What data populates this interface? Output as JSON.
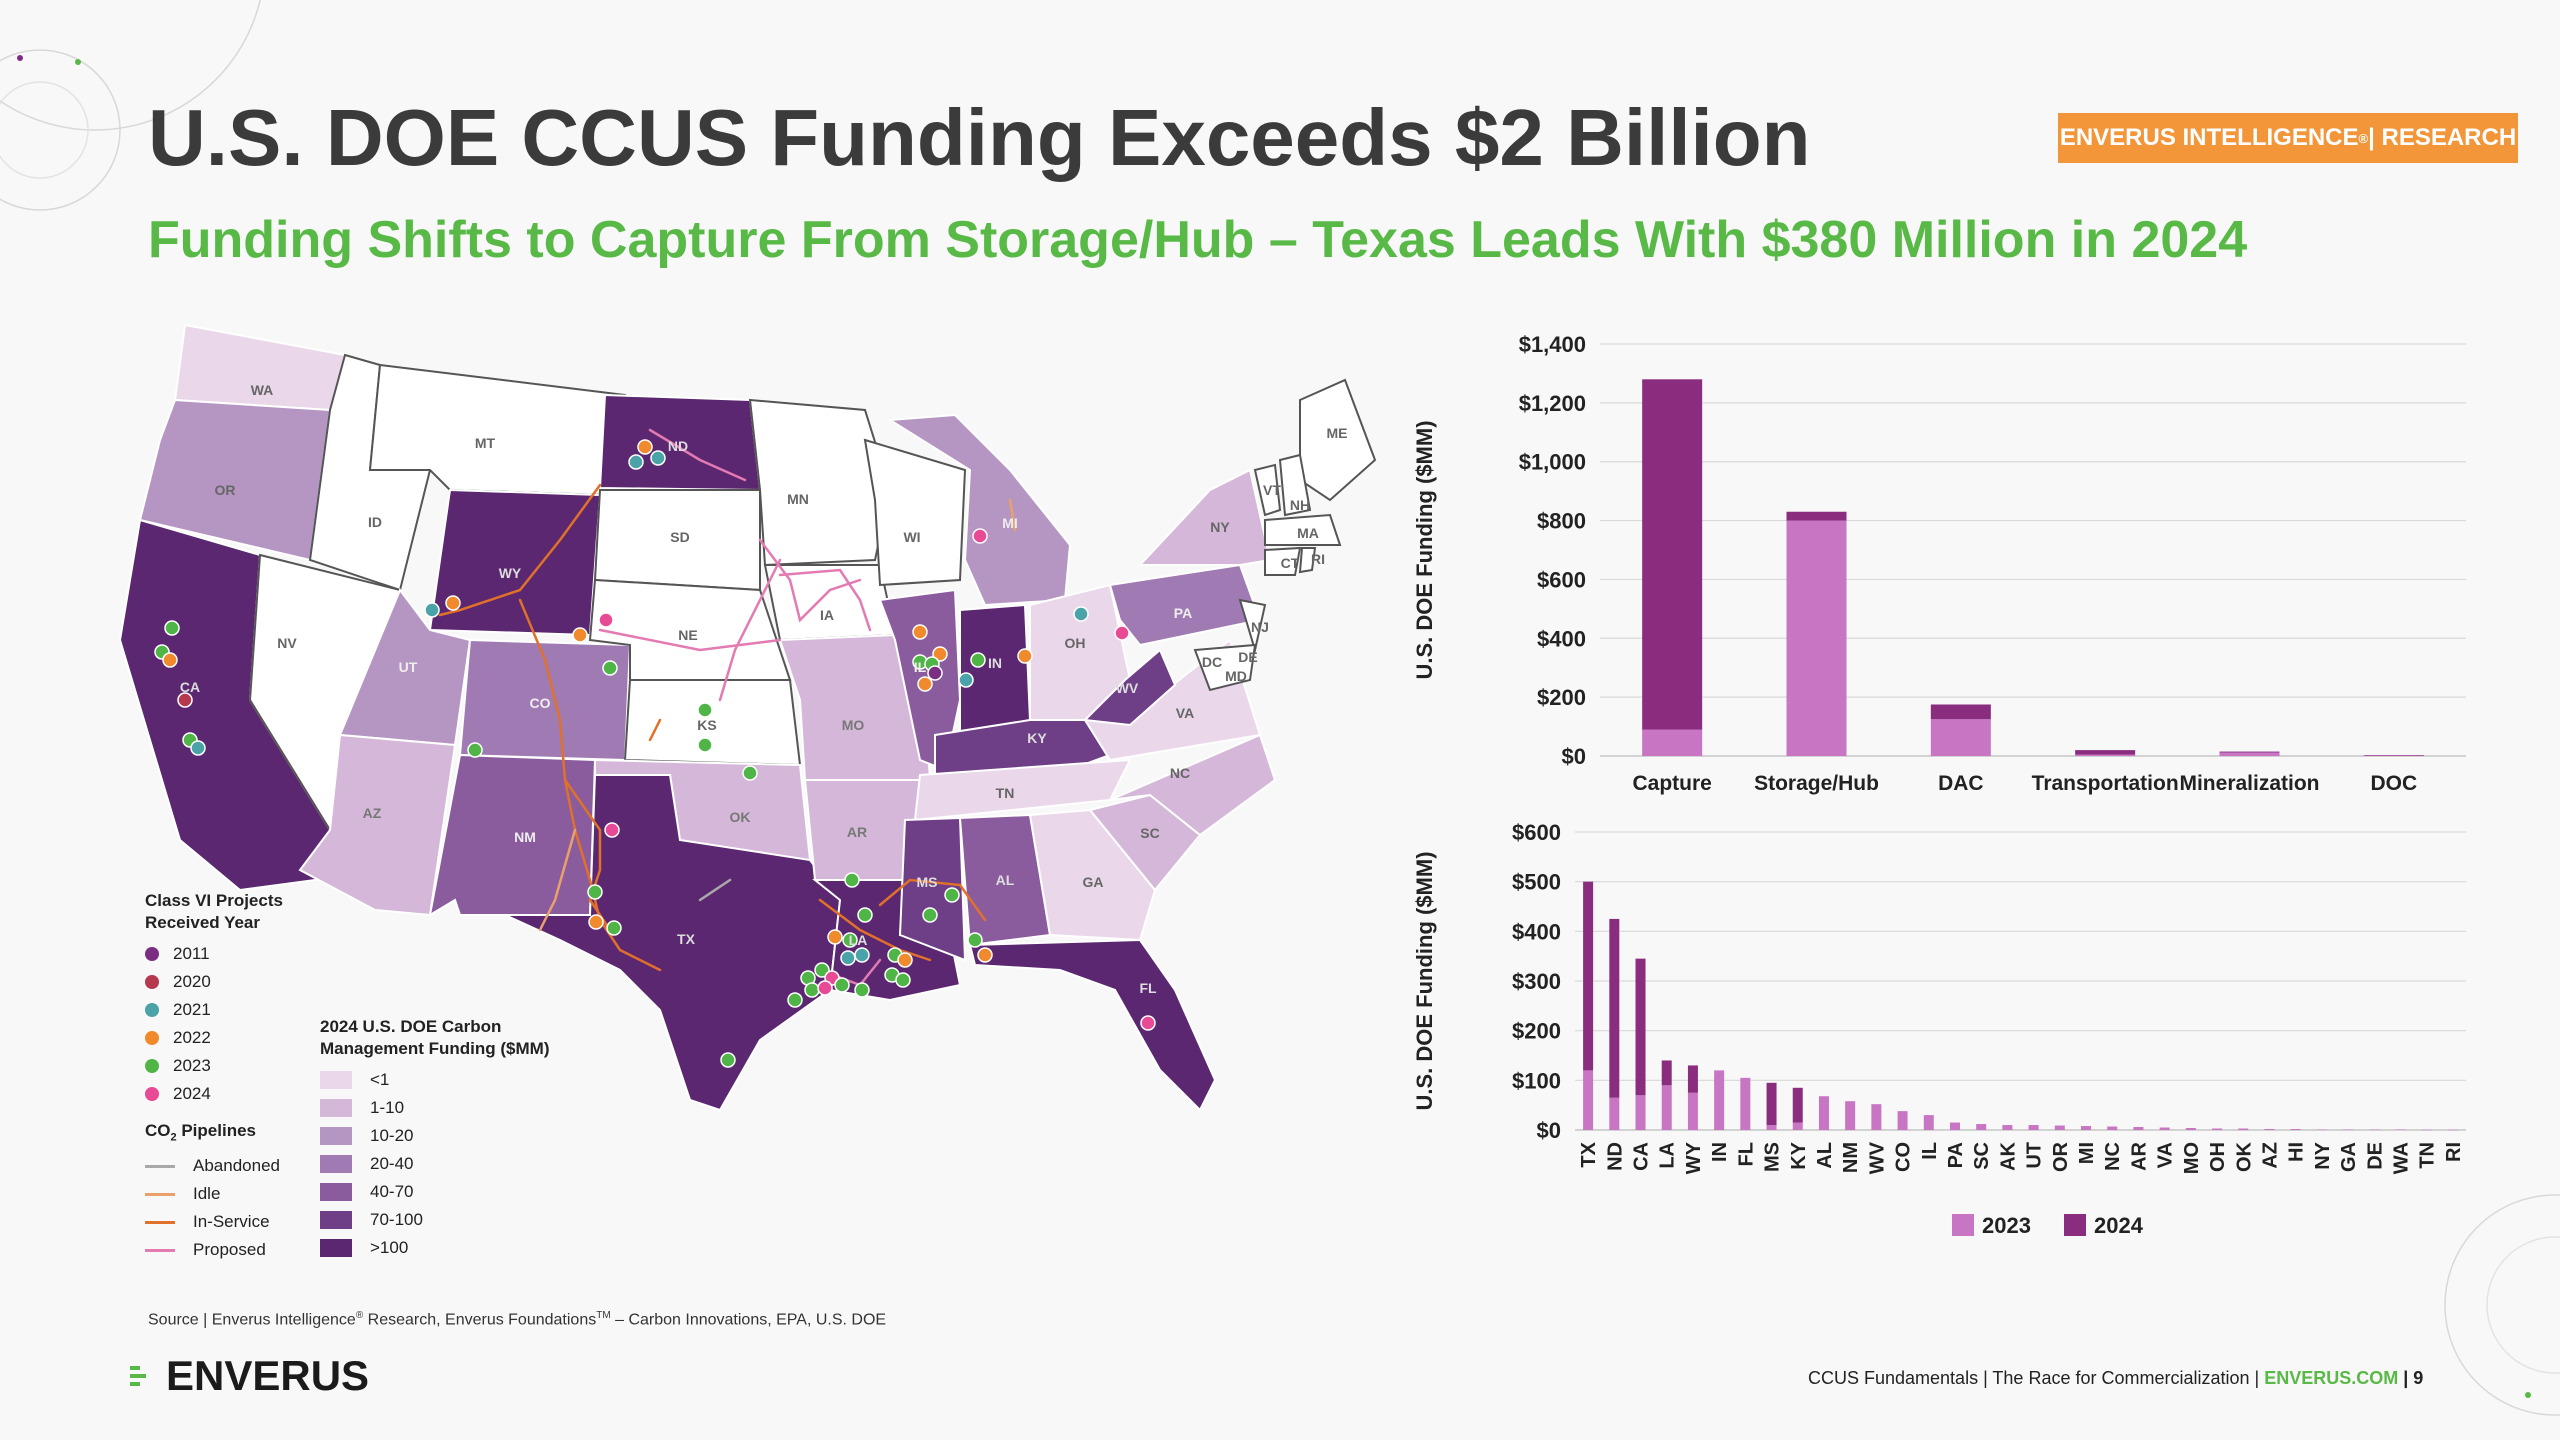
{
  "header": {
    "title": "U.S. DOE CCUS Funding Exceeds $2 Billion",
    "subtitle": "Funding Shifts to Capture From Storage/Hub – Texas Leads With $380 Million in 2024",
    "badge_left": "ENVERUS INTELLIGENCE",
    "badge_mark": "®",
    "badge_right": " | RESEARCH"
  },
  "map": {
    "state_labels": [
      "WA",
      "OR",
      "CA",
      "ID",
      "NV",
      "MT",
      "WY",
      "UT",
      "AZ",
      "CO",
      "NM",
      "ND",
      "SD",
      "NE",
      "KS",
      "OK",
      "TX",
      "MN",
      "IA",
      "MO",
      "AR",
      "LA",
      "WI",
      "IL",
      "MI",
      "IN",
      "OH",
      "KY",
      "TN",
      "MS",
      "AL",
      "GA",
      "FL",
      "SC",
      "NC",
      "VA",
      "WV",
      "PA",
      "NY",
      "ME",
      "VT",
      "NH",
      "MA",
      "CT",
      "RI",
      "NJ",
      "DE",
      "MD",
      "DC"
    ],
    "projects_legend": {
      "title": "Class VI Projects Received Year",
      "items": [
        {
          "label": "2011",
          "color": "#7b2d83"
        },
        {
          "label": "2020",
          "color": "#b5384e"
        },
        {
          "label": "2021",
          "color": "#4aa3a8"
        },
        {
          "label": "2022",
          "color": "#f08a2c"
        },
        {
          "label": "2023",
          "color": "#4fb547"
        },
        {
          "label": "2024",
          "color": "#e84a96"
        }
      ]
    },
    "pipelines_legend": {
      "title_main": "CO",
      "title_sub": "2",
      "title_rest": " Pipelines",
      "items": [
        {
          "label": "Abandoned",
          "color": "#a9a9a9"
        },
        {
          "label": "Idle",
          "color": "#e9a06a"
        },
        {
          "label": "In-Service",
          "color": "#e0702a"
        },
        {
          "label": "Proposed",
          "color": "#e47ab2"
        }
      ]
    },
    "funding_legend": {
      "title": "2024 U.S. DOE Carbon Management Funding ($MM)",
      "items": [
        {
          "label": "<1",
          "color": "#ead8ea"
        },
        {
          "label": "1-10",
          "color": "#d5b8d9"
        },
        {
          "label": "10-20",
          "color": "#b596c3"
        },
        {
          "label": "20-40",
          "color": "#a07bb3"
        },
        {
          "label": "40-70",
          "color": "#8a5c9e"
        },
        {
          "label": "70-100",
          "color": "#6e3f86"
        },
        {
          "label": ">100",
          "color": "#5a2770"
        }
      ]
    }
  },
  "chart_data": [
    {
      "type": "bar",
      "stacked": true,
      "categories": [
        "Capture",
        "Storage/Hub",
        "DAC",
        "Transportation",
        "Mineralization",
        "DOC"
      ],
      "series": [
        {
          "name": "2023",
          "color": "#c875c4",
          "values": [
            90,
            800,
            125,
            5,
            12,
            2
          ]
        },
        {
          "name": "2024",
          "color": "#8a2d7f",
          "values": [
            1190,
            30,
            50,
            15,
            3,
            1
          ]
        }
      ],
      "ylabel": "U.S. DOE Funding ($MM)",
      "ylim": [
        0,
        1400
      ],
      "yticks": [
        "$0",
        "$200",
        "$400",
        "$600",
        "$800",
        "$1,000",
        "$1,200",
        "$1,400"
      ],
      "grid": true
    },
    {
      "type": "bar",
      "stacked": true,
      "categories": [
        "TX",
        "ND",
        "CA",
        "LA",
        "WY",
        "IN",
        "FL",
        "MS",
        "KY",
        "AL",
        "NM",
        "WV",
        "CO",
        "IL",
        "PA",
        "SC",
        "AK",
        "UT",
        "OR",
        "MI",
        "NC",
        "AR",
        "VA",
        "MO",
        "OH",
        "OK",
        "AZ",
        "HI",
        "NY",
        "GA",
        "DE",
        "WA",
        "TN",
        "RI"
      ],
      "series": [
        {
          "name": "2023",
          "color": "#c875c4",
          "values": [
            120,
            65,
            70,
            90,
            75,
            120,
            105,
            10,
            15,
            68,
            58,
            52,
            38,
            30,
            15,
            12,
            10,
            10,
            9,
            8,
            7,
            6,
            5,
            4,
            3,
            3,
            2,
            2,
            1,
            1,
            1,
            1,
            0.5,
            0.5
          ]
        },
        {
          "name": "2024",
          "color": "#8a2d7f",
          "values": [
            380,
            360,
            275,
            50,
            55,
            0,
            0,
            85,
            70,
            0,
            0,
            0,
            0,
            0,
            0,
            0,
            0,
            0,
            0,
            0,
            0,
            0,
            0,
            0,
            0,
            0,
            0,
            0,
            0,
            0,
            0,
            0,
            0,
            0
          ]
        }
      ],
      "ylabel": "U.S. DOE Funding ($MM)",
      "ylim": [
        0,
        600
      ],
      "yticks": [
        "$0",
        "$100",
        "$200",
        "$300",
        "$400",
        "$500",
        "$600"
      ],
      "legend": "bottom",
      "grid": true
    }
  ],
  "footer": {
    "source_a": "Source | Enverus Intelligence",
    "source_mark": "®",
    "source_b": " Research, Enverus Foundations",
    "source_tm": "TM",
    "source_c": " – Carbon Innovations, EPA, U.S. DOE",
    "logo": "ENVERUS",
    "deck": "CCUS Fundamentals | The Race for Commercialization | ",
    "site": "ENVERUS.COM",
    "page": " | 9"
  }
}
